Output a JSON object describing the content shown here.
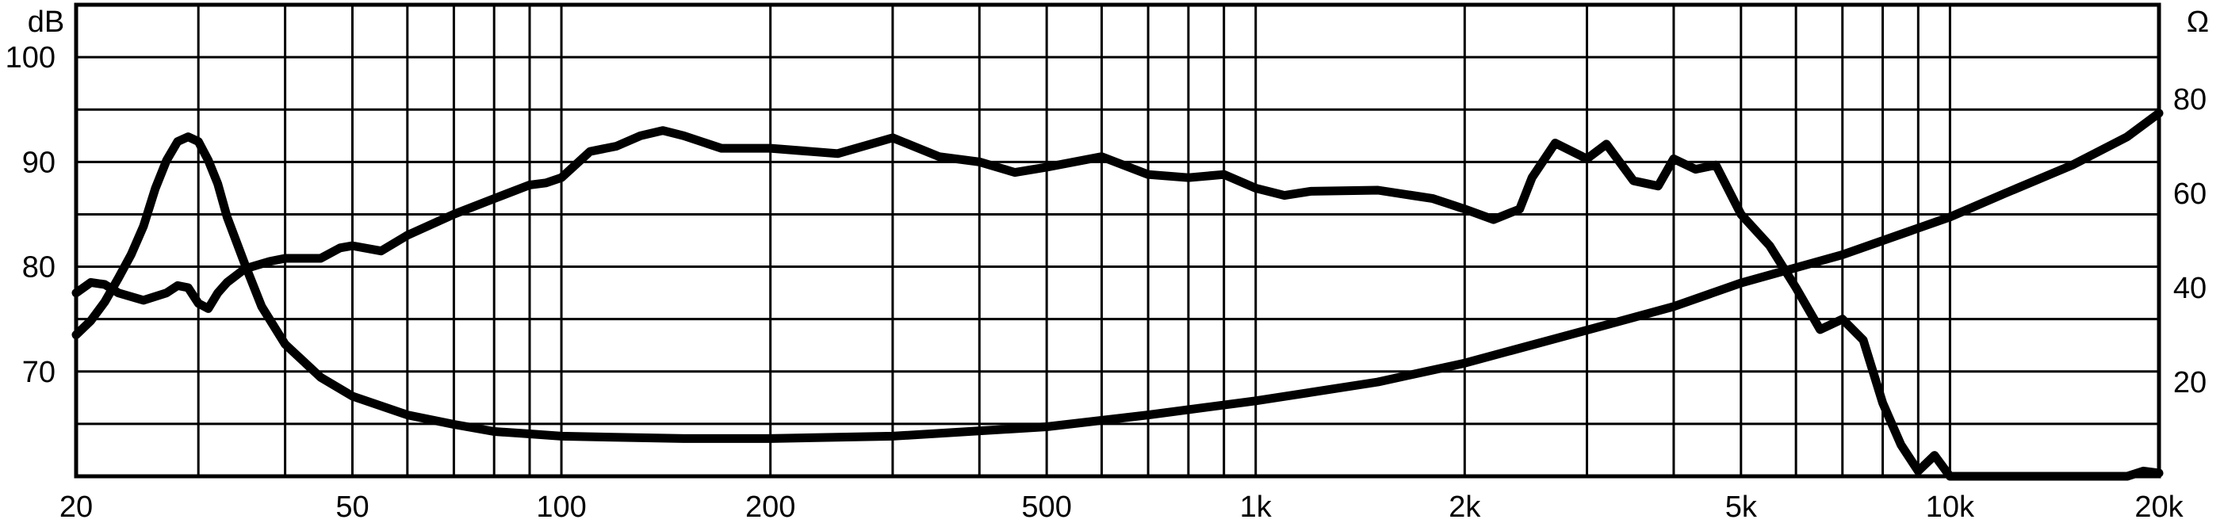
{
  "chart_data": {
    "type": "line",
    "title": "",
    "xscale": "log",
    "xlim": [
      20,
      20000
    ],
    "x_ticks": [
      {
        "value": 20,
        "label": "20"
      },
      {
        "value": 50,
        "label": "50"
      },
      {
        "value": 100,
        "label": "100"
      },
      {
        "value": 200,
        "label": "200"
      },
      {
        "value": 500,
        "label": "500"
      },
      {
        "value": 1000,
        "label": "1k"
      },
      {
        "value": 2000,
        "label": "2k"
      },
      {
        "value": 5000,
        "label": "5k"
      },
      {
        "value": 10000,
        "label": "10k"
      },
      {
        "value": 20000,
        "label": "20k"
      }
    ],
    "y_left": {
      "label": "dB",
      "lim": [
        60,
        105
      ],
      "ticks": [
        {
          "value": 70,
          "label": "70"
        },
        {
          "value": 80,
          "label": "80"
        },
        {
          "value": 90,
          "label": "90"
        },
        {
          "value": 100,
          "label": "100"
        }
      ]
    },
    "y_right": {
      "label": "Ω",
      "lim": [
        0,
        100
      ],
      "ticks": [
        {
          "value": 20,
          "label": "20"
        },
        {
          "value": 40,
          "label": "40"
        },
        {
          "value": 60,
          "label": "60"
        },
        {
          "value": 80,
          "label": "80"
        }
      ]
    },
    "grid": true,
    "series": [
      {
        "axis": "left",
        "x": [
          20,
          21,
          22,
          23,
          25,
          27,
          28,
          29,
          30,
          31,
          32,
          33,
          35,
          38,
          40,
          45,
          48,
          50,
          55,
          60,
          70,
          80,
          90,
          95,
          100,
          110,
          120,
          130,
          140,
          150,
          170,
          200,
          250,
          300,
          350,
          400,
          450,
          500,
          600,
          700,
          800,
          900,
          1000,
          1100,
          1200,
          1500,
          1800,
          2000,
          2200,
          2400,
          2500,
          2700,
          3000,
          3200,
          3500,
          3800,
          4000,
          4300,
          4600,
          5000,
          5500,
          6000,
          6500,
          7000,
          7500,
          8000,
          8500,
          9000,
          9500,
          10000,
          12000,
          15000,
          18000,
          19000,
          20000
        ],
        "y": [
          77.5,
          78.5,
          78.3,
          77.5,
          76.8,
          77.5,
          78.2,
          78.0,
          76.5,
          76.0,
          77.5,
          78.5,
          79.8,
          80.5,
          80.8,
          80.8,
          81.8,
          82.0,
          81.5,
          83.0,
          85.0,
          86.5,
          87.8,
          88.0,
          88.5,
          91.0,
          91.5,
          92.5,
          93.0,
          92.5,
          91.3,
          91.3,
          90.8,
          92.3,
          90.5,
          90.0,
          89.0,
          89.5,
          90.5,
          88.8,
          88.5,
          88.8,
          87.5,
          86.8,
          87.2,
          87.3,
          86.5,
          85.5,
          84.5,
          85.5,
          88.5,
          91.8,
          90.3,
          91.7,
          88.2,
          87.7,
          90.3,
          89.3,
          89.7,
          85.0,
          82.0,
          78.0,
          74.0,
          75.0,
          73.0,
          67.0,
          63.0,
          60.5,
          62.0,
          60.0,
          60.0,
          60.0,
          60.0,
          60.5,
          60.3
        ]
      },
      {
        "axis": "right",
        "x": [
          20,
          21,
          22,
          23,
          24,
          25,
          26,
          27,
          28,
          29,
          30,
          31,
          32,
          33,
          35,
          37,
          40,
          45,
          50,
          60,
          70,
          80,
          90,
          100,
          150,
          200,
          300,
          500,
          700,
          1000,
          1500,
          2000,
          3000,
          4000,
          5000,
          7000,
          10000,
          12000,
          15000,
          18000,
          20000
        ],
        "y": [
          30,
          33,
          37,
          42,
          47,
          53,
          61,
          67,
          71,
          72,
          71,
          67,
          62,
          55,
          45,
          36,
          28,
          21,
          17,
          13,
          11,
          9.5,
          9,
          8.5,
          8,
          8,
          8.5,
          10.5,
          13,
          16,
          20,
          24,
          31,
          36,
          41,
          47,
          55,
          60,
          66,
          72,
          77
        ]
      }
    ]
  }
}
